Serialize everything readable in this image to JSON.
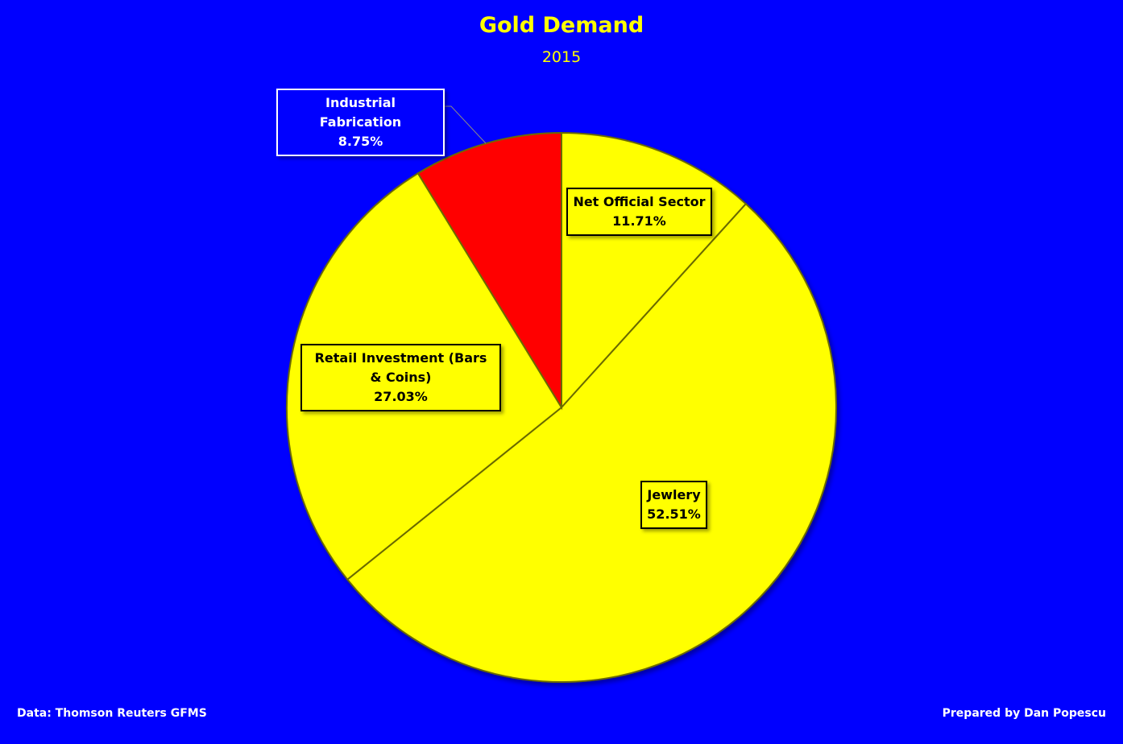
{
  "chart_data": {
    "type": "pie",
    "title": "Gold Demand",
    "subtitle": "2015",
    "start_angle": "12 o'clock, clockwise",
    "slices": [
      {
        "label": "Net Official Sector",
        "value": 11.71,
        "display": "11.71%",
        "color": "#ffff00"
      },
      {
        "label": "Jewlery",
        "value": 52.51,
        "display": "52.51%",
        "color": "#ffff00"
      },
      {
        "label": "Retail Investment (Bars & Coins)",
        "value": 27.03,
        "display": "27.03%",
        "color": "#ffff00"
      },
      {
        "label": "Industrial Fabrication",
        "value": 8.75,
        "display": "8.75%",
        "color": "#ff0000"
      }
    ],
    "background": "#0000ff",
    "source": "Data: Thomson Reuters GFMS",
    "credit": "Prepared by Dan Popescu"
  }
}
